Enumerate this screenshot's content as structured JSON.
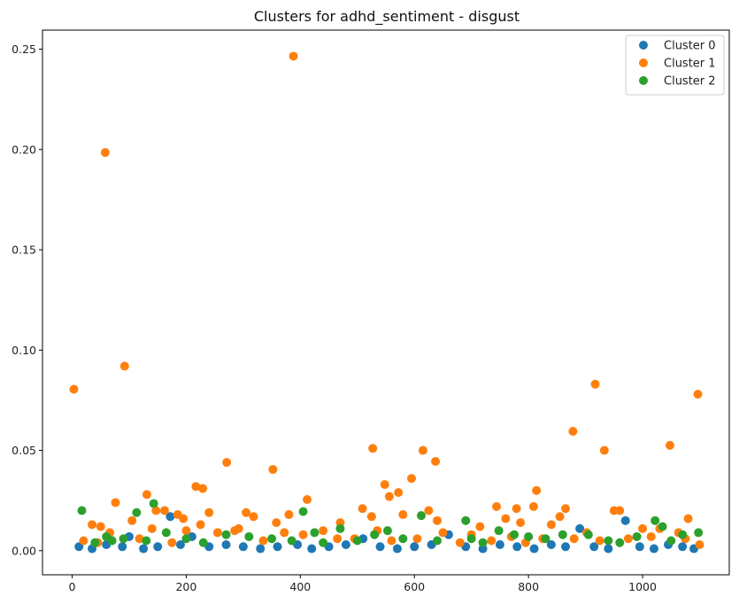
{
  "chart_data": {
    "type": "scatter",
    "title": "Clusters for adhd_sentiment - disgust",
    "xlabel": "",
    "ylabel": "",
    "xlim": [
      -52,
      1152
    ],
    "ylim": [
      -0.012,
      0.2595
    ],
    "x_ticks": [
      0,
      200,
      400,
      600,
      800,
      1000
    ],
    "y_ticks": [
      0.0,
      0.05,
      0.1,
      0.15,
      0.2,
      0.25
    ],
    "x_tick_labels": [
      "0",
      "200",
      "400",
      "600",
      "800",
      "1000"
    ],
    "y_tick_labels": [
      "0.00",
      "0.05",
      "0.10",
      "0.15",
      "0.20",
      "0.25"
    ],
    "grid": false,
    "legend_position": "top-right",
    "series": [
      {
        "name": "Cluster 0",
        "color": "#1f77b4",
        "points": [
          [
            12,
            0.002
          ],
          [
            35,
            0.001
          ],
          [
            60,
            0.003
          ],
          [
            88,
            0.002
          ],
          [
            100,
            0.007
          ],
          [
            125,
            0.001
          ],
          [
            150,
            0.002
          ],
          [
            172,
            0.017
          ],
          [
            190,
            0.003
          ],
          [
            210,
            0.007
          ],
          [
            240,
            0.002
          ],
          [
            270,
            0.003
          ],
          [
            300,
            0.002
          ],
          [
            330,
            0.001
          ],
          [
            360,
            0.002
          ],
          [
            395,
            0.003
          ],
          [
            420,
            0.001
          ],
          [
            450,
            0.002
          ],
          [
            480,
            0.003
          ],
          [
            510,
            0.006
          ],
          [
            540,
            0.002
          ],
          [
            570,
            0.001
          ],
          [
            600,
            0.002
          ],
          [
            630,
            0.003
          ],
          [
            660,
            0.008
          ],
          [
            690,
            0.002
          ],
          [
            720,
            0.001
          ],
          [
            750,
            0.003
          ],
          [
            780,
            0.002
          ],
          [
            810,
            0.001
          ],
          [
            840,
            0.003
          ],
          [
            865,
            0.002
          ],
          [
            890,
            0.011
          ],
          [
            915,
            0.002
          ],
          [
            940,
            0.001
          ],
          [
            970,
            0.015
          ],
          [
            995,
            0.002
          ],
          [
            1020,
            0.001
          ],
          [
            1045,
            0.003
          ],
          [
            1070,
            0.002
          ],
          [
            1090,
            0.001
          ]
        ]
      },
      {
        "name": "Cluster 1",
        "color": "#ff7f0e",
        "points": [
          [
            3,
            0.0805
          ],
          [
            58,
            0.1985
          ],
          [
            92,
            0.092
          ],
          [
            388,
            0.2465
          ],
          [
            527,
            0.051
          ],
          [
            615,
            0.05
          ],
          [
            637,
            0.0445
          ],
          [
            271,
            0.044
          ],
          [
            352,
            0.0405
          ],
          [
            878,
            0.0595
          ],
          [
            917,
            0.083
          ],
          [
            933,
            0.05
          ],
          [
            1048,
            0.0525
          ],
          [
            1097,
            0.078
          ],
          [
            548,
            0.033
          ],
          [
            595,
            0.036
          ],
          [
            217,
            0.032
          ],
          [
            229,
            0.031
          ],
          [
            131,
            0.028
          ],
          [
            412,
            0.0255
          ],
          [
            572,
            0.029
          ],
          [
            556,
            0.027
          ],
          [
            814,
            0.03
          ],
          [
            76,
            0.024
          ],
          [
            509,
            0.021
          ],
          [
            744,
            0.022
          ],
          [
            779,
            0.021
          ],
          [
            809,
            0.022
          ],
          [
            865,
            0.021
          ],
          [
            950,
            0.02
          ],
          [
            960,
            0.02
          ],
          [
            625,
            0.02
          ],
          [
            147,
            0.02
          ],
          [
            162,
            0.02
          ],
          [
            195,
            0.016
          ],
          [
            240,
            0.019
          ],
          [
            305,
            0.019
          ],
          [
            318,
            0.017
          ],
          [
            380,
            0.018
          ],
          [
            525,
            0.017
          ],
          [
            580,
            0.018
          ],
          [
            760,
            0.016
          ],
          [
            855,
            0.017
          ],
          [
            1080,
            0.016
          ],
          [
            35,
            0.013
          ],
          [
            50,
            0.012
          ],
          [
            105,
            0.015
          ],
          [
            185,
            0.018
          ],
          [
            225,
            0.013
          ],
          [
            285,
            0.01
          ],
          [
            358,
            0.014
          ],
          [
            470,
            0.014
          ],
          [
            640,
            0.015
          ],
          [
            715,
            0.012
          ],
          [
            786,
            0.014
          ],
          [
            840,
            0.013
          ],
          [
            902,
            0.009
          ],
          [
            1000,
            0.011
          ],
          [
            1030,
            0.011
          ],
          [
            1063,
            0.009
          ],
          [
            20,
            0.005
          ],
          [
            45,
            0.004
          ],
          [
            66,
            0.009
          ],
          [
            118,
            0.006
          ],
          [
            140,
            0.011
          ],
          [
            175,
            0.004
          ],
          [
            200,
            0.01
          ],
          [
            255,
            0.009
          ],
          [
            292,
            0.011
          ],
          [
            335,
            0.005
          ],
          [
            372,
            0.009
          ],
          [
            405,
            0.008
          ],
          [
            440,
            0.01
          ],
          [
            465,
            0.006
          ],
          [
            495,
            0.006
          ],
          [
            535,
            0.01
          ],
          [
            560,
            0.005
          ],
          [
            605,
            0.006
          ],
          [
            650,
            0.009
          ],
          [
            680,
            0.004
          ],
          [
            700,
            0.008
          ],
          [
            735,
            0.005
          ],
          [
            770,
            0.007
          ],
          [
            795,
            0.004
          ],
          [
            825,
            0.006
          ],
          [
            880,
            0.006
          ],
          [
            925,
            0.005
          ],
          [
            975,
            0.006
          ],
          [
            1015,
            0.007
          ],
          [
            1075,
            0.006
          ],
          [
            1100,
            0.003
          ]
        ]
      },
      {
        "name": "Cluster 2",
        "color": "#2ca02c",
        "points": [
          [
            17,
            0.02
          ],
          [
            113,
            0.019
          ],
          [
            143,
            0.0235
          ],
          [
            405,
            0.0195
          ],
          [
            612,
            0.0175
          ],
          [
            690,
            0.015
          ],
          [
            1022,
            0.015
          ],
          [
            553,
            0.01
          ],
          [
            470,
            0.011
          ],
          [
            425,
            0.009
          ],
          [
            530,
            0.008
          ],
          [
            748,
            0.01
          ],
          [
            775,
            0.008
          ],
          [
            800,
            0.007
          ],
          [
            860,
            0.008
          ],
          [
            905,
            0.008
          ],
          [
            990,
            0.007
          ],
          [
            1035,
            0.012
          ],
          [
            1070,
            0.008
          ],
          [
            1098,
            0.009
          ],
          [
            270,
            0.008
          ],
          [
            310,
            0.007
          ],
          [
            200,
            0.006
          ],
          [
            165,
            0.009
          ],
          [
            90,
            0.006
          ],
          [
            70,
            0.005
          ],
          [
            40,
            0.004
          ],
          [
            60,
            0.007
          ],
          [
            130,
            0.005
          ],
          [
            230,
            0.004
          ],
          [
            350,
            0.006
          ],
          [
            385,
            0.005
          ],
          [
            440,
            0.004
          ],
          [
            500,
            0.005
          ],
          [
            580,
            0.006
          ],
          [
            640,
            0.005
          ],
          [
            700,
            0.006
          ],
          [
            720,
            0.004
          ],
          [
            830,
            0.006
          ],
          [
            940,
            0.005
          ],
          [
            960,
            0.004
          ],
          [
            1050,
            0.005
          ]
        ]
      }
    ]
  }
}
